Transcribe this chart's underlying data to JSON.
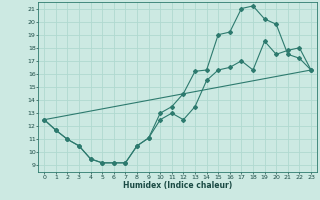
{
  "xlabel": "Humidex (Indice chaleur)",
  "bg_color": "#cce9e2",
  "line_color": "#2d7a6e",
  "grid_color": "#b0d9d0",
  "ylim": [
    8.5,
    21.5
  ],
  "xlim": [
    -0.5,
    23.5
  ],
  "yticks": [
    9,
    10,
    11,
    12,
    13,
    14,
    15,
    16,
    17,
    18,
    19,
    20,
    21
  ],
  "xticks": [
    0,
    1,
    2,
    3,
    4,
    5,
    6,
    7,
    8,
    9,
    10,
    11,
    12,
    13,
    14,
    15,
    16,
    17,
    18,
    19,
    20,
    21,
    22,
    23
  ],
  "line1_x": [
    0,
    1,
    2,
    3,
    4,
    5,
    6,
    7,
    8,
    9,
    10,
    11,
    12,
    13,
    14,
    15,
    16,
    17,
    18,
    19,
    20,
    21,
    22,
    23
  ],
  "line1_y": [
    12.5,
    11.7,
    11.0,
    10.5,
    9.5,
    9.2,
    9.2,
    9.2,
    10.5,
    11.1,
    12.5,
    13.0,
    12.5,
    13.5,
    15.5,
    16.3,
    16.5,
    17.0,
    16.3,
    18.5,
    17.5,
    17.8,
    18.0,
    16.3
  ],
  "line2_x": [
    0,
    1,
    2,
    3,
    4,
    5,
    6,
    7,
    8,
    9,
    10,
    11,
    12,
    13,
    14,
    15,
    16,
    17,
    18,
    19,
    20,
    21,
    22,
    23
  ],
  "line2_y": [
    12.5,
    11.7,
    11.0,
    10.5,
    9.5,
    9.2,
    9.2,
    9.2,
    10.5,
    11.1,
    13.0,
    13.5,
    14.5,
    16.2,
    16.3,
    19.0,
    19.2,
    21.0,
    21.2,
    20.2,
    19.8,
    17.5,
    17.2,
    16.3
  ],
  "line3_x": [
    0,
    23
  ],
  "line3_y": [
    12.5,
    16.3
  ]
}
